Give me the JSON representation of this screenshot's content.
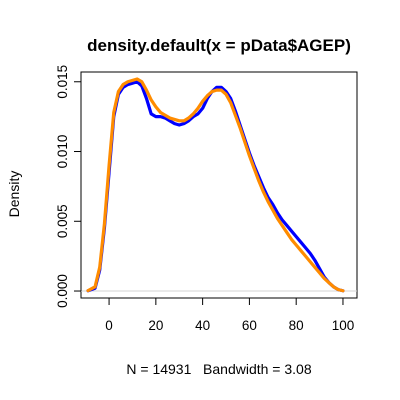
{
  "chart_data": {
    "type": "line",
    "title": "density.default(x = pData$AGEP)",
    "xlabel": "N = 14931   Bandwidth = 3.08",
    "ylabel": "Density",
    "xlim": [
      -12,
      106
    ],
    "ylim": [
      -0.0005,
      0.0157
    ],
    "xticks": [
      0,
      20,
      40,
      60,
      80,
      100
    ],
    "xtick_labels": [
      "0",
      "20",
      "40",
      "60",
      "80",
      "100"
    ],
    "yticks": [
      0.0,
      0.005,
      0.01,
      0.015
    ],
    "ytick_labels": [
      "0.000",
      "0.005",
      "0.010",
      "0.015"
    ],
    "grid": false,
    "legend": "none",
    "baseline": 0,
    "series": [
      {
        "color": "#0000ff",
        "x": [
          -9,
          -6,
          -4,
          -2,
          0,
          2,
          4,
          6,
          8,
          10,
          12,
          14,
          16,
          18,
          20,
          22,
          24,
          26,
          28,
          30,
          32,
          34,
          36,
          38,
          40,
          42,
          44,
          46,
          48,
          50,
          52,
          54,
          56,
          58,
          60,
          62,
          64,
          66,
          68,
          70,
          72,
          74,
          76,
          78,
          80,
          82,
          84,
          86,
          88,
          90,
          92,
          94,
          96,
          98,
          100
        ],
        "y": [
          2e-05,
          0.0002,
          0.0015,
          0.0045,
          0.0085,
          0.0125,
          0.0141,
          0.0146,
          0.0148,
          0.0149,
          0.015,
          0.0147,
          0.0138,
          0.0127,
          0.0125,
          0.0125,
          0.0124,
          0.0122,
          0.012,
          0.0119,
          0.012,
          0.0122,
          0.0125,
          0.0127,
          0.0131,
          0.0138,
          0.0143,
          0.0146,
          0.0146,
          0.0143,
          0.0138,
          0.0129,
          0.0119,
          0.0109,
          0.0099,
          0.009,
          0.0082,
          0.0074,
          0.0067,
          0.0062,
          0.0056,
          0.0051,
          0.0047,
          0.0043,
          0.0039,
          0.0035,
          0.0031,
          0.0027,
          0.0022,
          0.0016,
          0.001,
          0.0006,
          0.0003,
          0.0001,
          2e-05
        ]
      },
      {
        "color": "#ff8c00",
        "x": [
          -9,
          -6,
          -4,
          -2,
          0,
          2,
          4,
          6,
          8,
          10,
          12,
          14,
          16,
          18,
          20,
          22,
          24,
          26,
          28,
          30,
          32,
          34,
          36,
          38,
          40,
          42,
          44,
          46,
          48,
          50,
          52,
          54,
          56,
          58,
          60,
          62,
          64,
          66,
          68,
          70,
          72,
          74,
          76,
          78,
          80,
          82,
          84,
          86,
          88,
          90,
          92,
          94,
          96,
          98,
          100
        ],
        "y": [
          3e-05,
          0.0003,
          0.0017,
          0.0048,
          0.009,
          0.0128,
          0.0143,
          0.0148,
          0.015,
          0.0151,
          0.0152,
          0.015,
          0.0144,
          0.0137,
          0.0132,
          0.0128,
          0.0126,
          0.0124,
          0.0123,
          0.0122,
          0.0122,
          0.0124,
          0.0127,
          0.0131,
          0.0136,
          0.014,
          0.0143,
          0.0144,
          0.0144,
          0.0141,
          0.0135,
          0.0126,
          0.0117,
          0.0107,
          0.0097,
          0.0088,
          0.0079,
          0.0071,
          0.0064,
          0.0058,
          0.0052,
          0.0047,
          0.0042,
          0.0037,
          0.0033,
          0.0029,
          0.0025,
          0.0021,
          0.0017,
          0.0013,
          0.0009,
          0.0006,
          0.0003,
          0.0001,
          2e-05
        ]
      }
    ]
  }
}
